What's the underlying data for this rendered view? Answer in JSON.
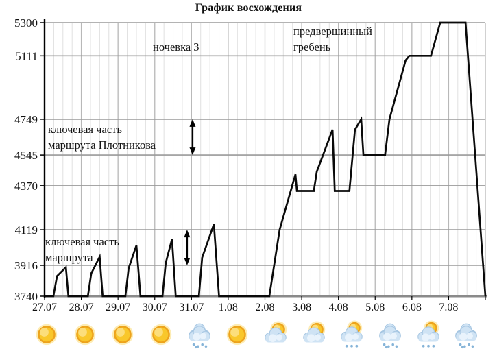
{
  "title": "График восхождения",
  "chart_data": {
    "type": "line",
    "title": "График восхождения",
    "ylabel": "",
    "xlabel": "",
    "y_axis": {
      "ticks": [
        5300,
        5111,
        4749,
        4545,
        4370,
        4119,
        3916,
        3740
      ],
      "min": 3740,
      "max": 5300,
      "grid": true
    },
    "x_axis": {
      "labels": [
        "27.07",
        "28.07",
        "29.07",
        "30.07",
        "31.07",
        "1.08",
        "2.08",
        "3.08",
        "4.08",
        "5.08",
        "6.08",
        "7.08"
      ],
      "days": 12,
      "minor_divisions_per_day": 4,
      "grid": true
    },
    "series": [
      {
        "name": "altitude-profile",
        "points_day_meters": [
          [
            0.0,
            3740
          ],
          [
            0.24,
            3740
          ],
          [
            0.34,
            3855
          ],
          [
            0.58,
            3905
          ],
          [
            0.65,
            3740
          ],
          [
            1.18,
            3740
          ],
          [
            1.27,
            3870
          ],
          [
            1.5,
            3965
          ],
          [
            1.58,
            3740
          ],
          [
            2.2,
            3740
          ],
          [
            2.29,
            3900
          ],
          [
            2.5,
            4030
          ],
          [
            2.61,
            3740
          ],
          [
            3.21,
            3740
          ],
          [
            3.3,
            3930
          ],
          [
            3.47,
            4065
          ],
          [
            3.57,
            3740
          ],
          [
            4.2,
            3740
          ],
          [
            4.29,
            3960
          ],
          [
            4.61,
            4150
          ],
          [
            4.75,
            3740
          ],
          [
            6.12,
            3740
          ],
          [
            6.4,
            4119
          ],
          [
            6.83,
            4435
          ],
          [
            6.87,
            4340
          ],
          [
            7.33,
            4340
          ],
          [
            7.41,
            4450
          ],
          [
            7.84,
            4690
          ],
          [
            7.9,
            4340
          ],
          [
            8.3,
            4340
          ],
          [
            8.45,
            4690
          ],
          [
            8.62,
            4749
          ],
          [
            8.68,
            4545
          ],
          [
            9.27,
            4545
          ],
          [
            9.39,
            4749
          ],
          [
            9.83,
            5085
          ],
          [
            9.93,
            5111
          ],
          [
            10.52,
            5111
          ],
          [
            10.77,
            5300
          ],
          [
            11.46,
            5300
          ],
          [
            12.0,
            3740
          ]
        ]
      }
    ],
    "annotations": [
      {
        "id": "camp3",
        "text": "ночевка 3"
      },
      {
        "id": "pre-summit-ridge",
        "text": "предвершинный\nгребень"
      },
      {
        "id": "key-section-plotnikov",
        "text": "ключевая часть\nмаршрута Плотникова"
      },
      {
        "id": "key-section",
        "text": "ключевая часть\nмаршрута"
      }
    ],
    "arrows": [
      {
        "day": 4.03,
        "from_m": 4749,
        "to_m": 4545
      },
      {
        "day": 3.88,
        "from_m": 4119,
        "to_m": 3916
      }
    ],
    "colors": {
      "line": "#0a0a0a",
      "grid_major_h": "#9a9a9a",
      "grid_day_v": "#b8b8b8",
      "grid_minor_v": "#e0e0e0",
      "axis": "#000000",
      "baseline": "#8a8a8a"
    }
  },
  "weather": {
    "icons": [
      {
        "date": "27.07",
        "type": "sun"
      },
      {
        "date": "28.07",
        "type": "sun"
      },
      {
        "date": "29.07",
        "type": "sun"
      },
      {
        "date": "30.07",
        "type": "sun"
      },
      {
        "date": "31.07",
        "type": "snow-cloud"
      },
      {
        "date": "1.08",
        "type": "sun"
      },
      {
        "date": "2.08",
        "type": "sun-cloud"
      },
      {
        "date": "3.08",
        "type": "sun-cloud"
      },
      {
        "date": "4.08",
        "type": "sun-cloud-snow"
      },
      {
        "date": "5.08",
        "type": "snow-cloud"
      },
      {
        "date": "6.08",
        "type": "sun-cloud-snow"
      },
      {
        "date": "7.08",
        "type": "snow-cloud"
      }
    ],
    "icon_colors": {
      "sun_fill": "#f9c72b",
      "sun_rim": "#eda31c",
      "sun_glow": "#fbd558",
      "cloud_fill": "#cfe3f4",
      "cloud_rim": "#a6c6e2",
      "cloud_highlight": "#e9f3fc",
      "snow_dot": "#86b4d8"
    }
  }
}
